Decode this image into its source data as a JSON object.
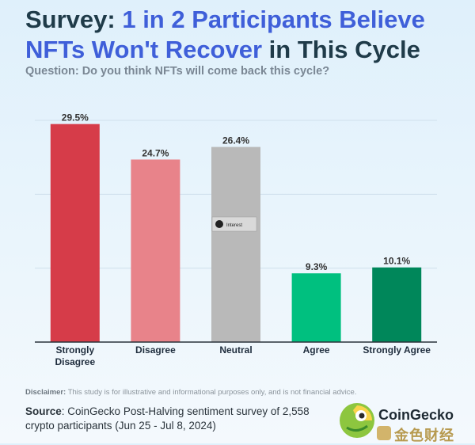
{
  "title": {
    "part1": "Survey: ",
    "part2": "1 in 2 Participants Believe NFTs Won't Recover",
    "part3": " in This Cycle"
  },
  "question": "Question: Do you think NFTs will come back this cycle?",
  "chart_data": {
    "type": "bar",
    "categories": [
      "Strongly Disagree",
      "Disagree",
      "Neutral",
      "Agree",
      "Strongly Agree"
    ],
    "category_lines": [
      [
        "Strongly",
        "Disagree"
      ],
      [
        "Disagree"
      ],
      [
        "Neutral"
      ],
      [
        "Agree"
      ],
      [
        "Strongly Agree"
      ]
    ],
    "values": [
      29.5,
      24.7,
      26.4,
      9.3,
      10.1
    ],
    "labels": [
      "29.5%",
      "24.7%",
      "26.4%",
      "9.3%",
      "10.1%"
    ],
    "colors": [
      "#d63c49",
      "#e8838a",
      "#b9b9b9",
      "#00c07f",
      "#00875a"
    ],
    "ylim": [
      0,
      30
    ],
    "grid": true
  },
  "overlay_tag": "Interest",
  "disclaimer": {
    "label": "Disclaimer:",
    "text": " This study is for illustrative and informational purposes only, and is not financial advice."
  },
  "source": {
    "label": "Source",
    "text": ": CoinGecko Post-Halving sentiment survey of 2,558 crypto participants (Jun 25 - Jul 8, 2024)"
  },
  "brand": {
    "name": "CoinGecko",
    "watermark": "金色财经"
  }
}
